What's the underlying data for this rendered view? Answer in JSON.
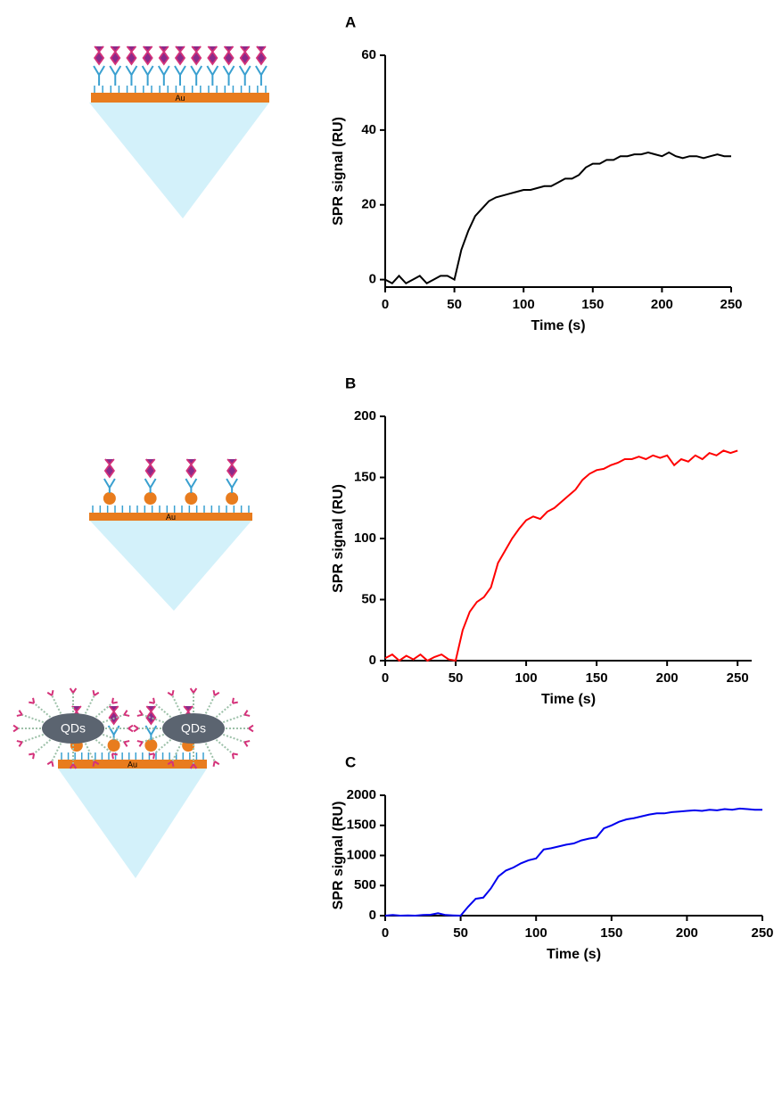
{
  "chart_data": [
    {
      "type": "line",
      "panel": "A",
      "y_label": "SPR signal (RU)",
      "x_label": "Time (s)",
      "color": "#000000",
      "x": [
        0,
        5,
        10,
        15,
        20,
        25,
        30,
        35,
        40,
        45,
        50,
        55,
        60,
        65,
        70,
        75,
        80,
        85,
        90,
        95,
        100,
        105,
        110,
        115,
        120,
        125,
        130,
        135,
        140,
        145,
        150,
        155,
        160,
        165,
        170,
        175,
        180,
        185,
        190,
        195,
        200,
        205,
        210,
        215,
        220,
        225,
        230,
        235,
        240,
        245,
        250
      ],
      "values": [
        0,
        -1,
        1,
        -1,
        0,
        1,
        -1,
        0,
        1,
        1,
        0,
        8,
        13,
        17,
        19,
        21,
        22,
        22.5,
        23,
        23.5,
        24,
        24,
        24.5,
        25,
        25,
        26,
        27,
        27,
        28,
        30,
        31,
        31,
        32,
        32,
        33,
        33,
        33.5,
        33.5,
        34,
        33.5,
        33,
        34,
        33,
        32.5,
        33,
        33,
        32.5,
        33,
        33.5,
        33,
        33
      ],
      "xlim": [
        0,
        250
      ],
      "ylim": [
        -2,
        60
      ],
      "xticks": [
        0,
        50,
        100,
        150,
        200,
        250
      ],
      "yticks": [
        0,
        20,
        40,
        60
      ]
    },
    {
      "type": "line",
      "panel": "B",
      "y_label": "SPR signal (RU)",
      "x_label": "Time (s)",
      "color": "#ff0000",
      "x": [
        0,
        5,
        10,
        15,
        20,
        25,
        30,
        35,
        40,
        45,
        50,
        55,
        60,
        65,
        70,
        75,
        80,
        85,
        90,
        95,
        100,
        105,
        110,
        115,
        120,
        125,
        130,
        135,
        140,
        145,
        150,
        155,
        160,
        165,
        170,
        175,
        180,
        185,
        190,
        195,
        200,
        205,
        210,
        215,
        220,
        225,
        230,
        235,
        240,
        245,
        250
      ],
      "values": [
        2,
        5,
        0,
        4,
        1,
        5,
        0,
        3,
        5,
        1,
        0,
        25,
        40,
        48,
        52,
        60,
        80,
        90,
        100,
        108,
        115,
        118,
        116,
        122,
        125,
        130,
        135,
        140,
        148,
        153,
        156,
        157,
        160,
        162,
        165,
        165,
        167,
        165,
        168,
        166,
        168,
        160,
        165,
        163,
        168,
        165,
        170,
        168,
        172,
        170,
        172
      ],
      "xlim": [
        0,
        260
      ],
      "ylim": [
        0,
        200
      ],
      "xticks": [
        0,
        50,
        100,
        150,
        200,
        250
      ],
      "yticks": [
        0,
        50,
        100,
        150,
        200
      ]
    },
    {
      "type": "line",
      "panel": "C",
      "y_label": "SPR signal (RU)",
      "x_label": "Time (s)",
      "color": "#0000ee",
      "x": [
        0,
        5,
        10,
        15,
        20,
        25,
        30,
        35,
        40,
        45,
        50,
        55,
        60,
        65,
        70,
        75,
        80,
        85,
        90,
        95,
        100,
        105,
        110,
        115,
        120,
        125,
        130,
        135,
        140,
        145,
        150,
        155,
        160,
        165,
        170,
        175,
        180,
        185,
        190,
        195,
        200,
        205,
        210,
        215,
        220,
        225,
        230,
        235,
        240,
        245,
        250
      ],
      "values": [
        0,
        10,
        0,
        5,
        0,
        10,
        15,
        40,
        10,
        5,
        0,
        150,
        280,
        300,
        450,
        650,
        750,
        800,
        870,
        920,
        950,
        1100,
        1120,
        1150,
        1180,
        1200,
        1250,
        1280,
        1300,
        1450,
        1500,
        1560,
        1600,
        1620,
        1650,
        1680,
        1700,
        1700,
        1720,
        1730,
        1740,
        1750,
        1740,
        1760,
        1750,
        1770,
        1760,
        1780,
        1770,
        1760,
        1760
      ],
      "xlim": [
        0,
        250
      ],
      "ylim": [
        0,
        2000
      ],
      "xticks": [
        0,
        50,
        100,
        150,
        200,
        250
      ],
      "yticks": [
        0,
        500,
        1000,
        1500,
        2000
      ]
    }
  ],
  "diagrams": [
    {
      "substrate": "Au"
    },
    {
      "substrate": "Au"
    },
    {
      "substrate": "Au",
      "particles": [
        "QDs",
        "QDs"
      ]
    }
  ]
}
